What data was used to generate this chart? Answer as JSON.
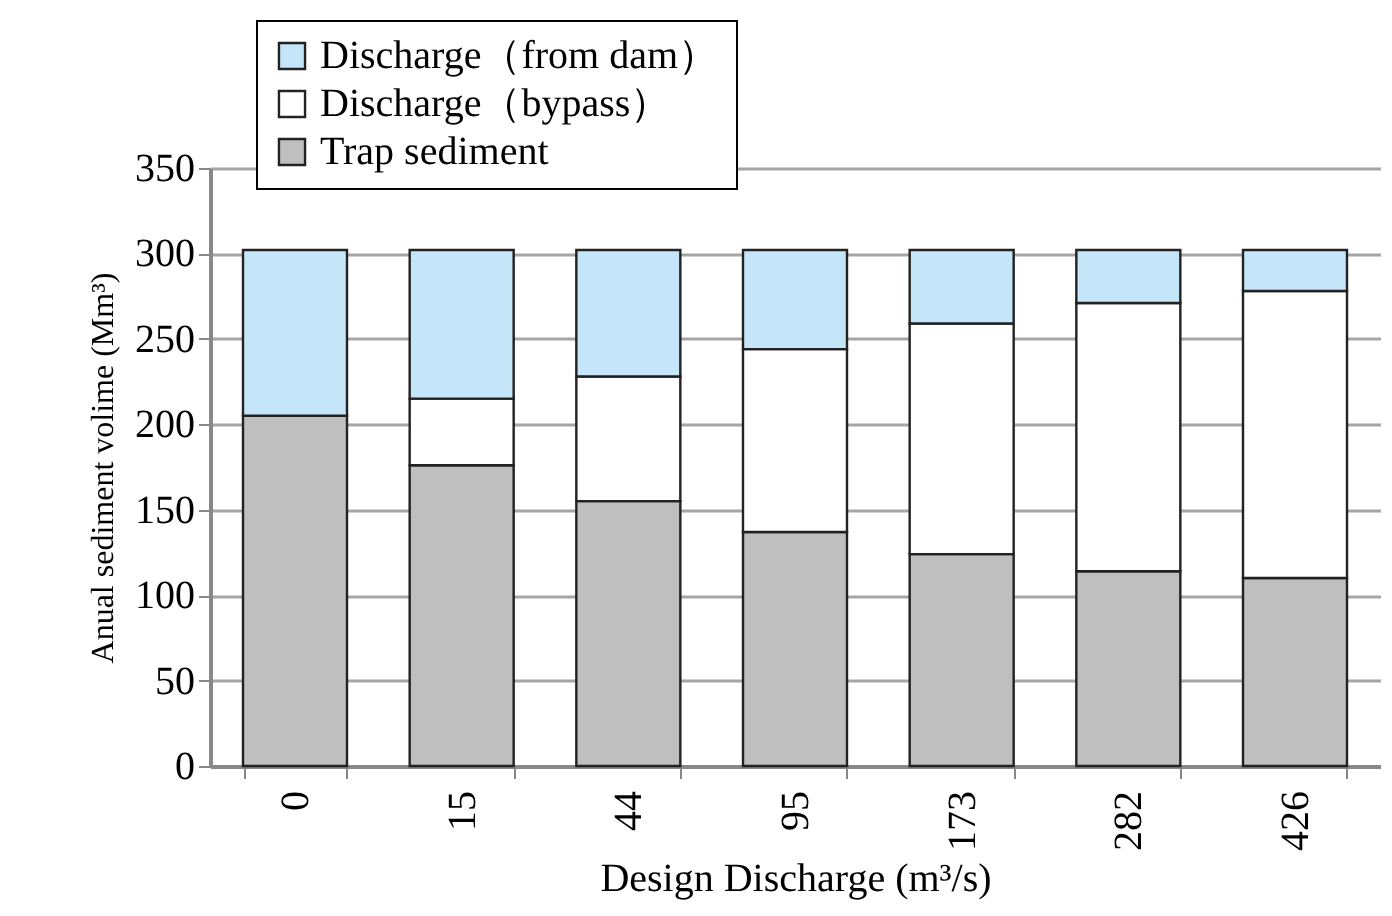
{
  "chart_data": {
    "type": "bar",
    "stacked": true,
    "xlabel": "Design Discharge (m³/s)",
    "ylabel": "Anual sediment volime (Mm³)",
    "categories": [
      "0",
      "15",
      "44",
      "95",
      "173",
      "282",
      "426"
    ],
    "series": [
      {
        "name": "Trap sediment",
        "color": "#bfbfbf",
        "values": [
          205,
          176,
          155,
          137,
          124,
          114,
          110
        ]
      },
      {
        "name": "Discharge（bypass）",
        "color": "#ffffff",
        "values": [
          0,
          39,
          73,
          107,
          135,
          157,
          168
        ]
      },
      {
        "name": "Discharge（from dam）",
        "color": "#c5e6f8",
        "values": [
          97,
          87,
          74,
          58,
          43,
          31,
          24
        ]
      }
    ],
    "ylim": [
      0,
      350
    ],
    "yticks": [
      0,
      50,
      100,
      150,
      200,
      250,
      300,
      350
    ],
    "grid": "y",
    "legend": "top left"
  }
}
